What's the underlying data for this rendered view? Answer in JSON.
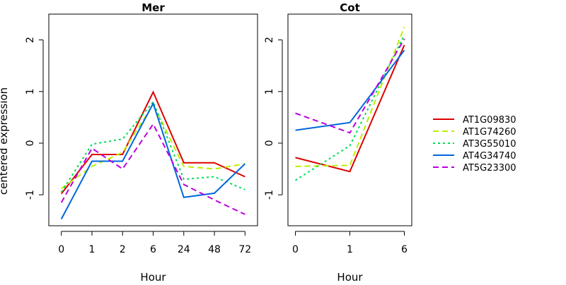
{
  "chart_data": {
    "type": "line",
    "ylabel": "centered expression",
    "ylim": [
      -1.6,
      2.5
    ],
    "yticks": [
      -1,
      0,
      1,
      2
    ],
    "legend_position": "right",
    "series_styles": [
      {
        "name": "AT1G09830",
        "color": "#dd0000",
        "dash": "solid"
      },
      {
        "name": "AT1G74260",
        "color": "#bbee00",
        "dash": "dashed"
      },
      {
        "name": "AT3G55010",
        "color": "#00dd55",
        "dash": "dotted"
      },
      {
        "name": "AT4G34740",
        "color": "#0066dd",
        "dash": "solid"
      },
      {
        "name": "AT5G23300",
        "color": "#bb00dd",
        "dash": "dashed"
      }
    ],
    "panels": [
      {
        "title": "Mer",
        "xlabel": "Hour",
        "categories": [
          "0",
          "1",
          "2",
          "6",
          "24",
          "48",
          "72"
        ],
        "series": [
          {
            "name": "AT1G09830",
            "values": [
              -0.98,
              -0.22,
              -0.22,
              0.99,
              -0.38,
              -0.38,
              -0.65
            ]
          },
          {
            "name": "AT1G74260",
            "values": [
              -0.88,
              -0.45,
              -0.18,
              0.75,
              -0.45,
              -0.5,
              -0.4
            ]
          },
          {
            "name": "AT3G55010",
            "values": [
              -0.95,
              -0.02,
              0.08,
              0.8,
              -0.7,
              -0.65,
              -0.9
            ]
          },
          {
            "name": "AT4G34740",
            "values": [
              -1.47,
              -0.35,
              -0.35,
              0.77,
              -1.05,
              -0.97,
              -0.4
            ]
          },
          {
            "name": "AT5G23300",
            "values": [
              -1.15,
              -0.1,
              -0.5,
              0.37,
              -0.8,
              -1.1,
              -1.38
            ]
          }
        ]
      },
      {
        "title": "Cot",
        "xlabel": "Hour",
        "categories": [
          "0",
          "1",
          "6"
        ],
        "series": [
          {
            "name": "AT1G09830",
            "values": [
              -0.28,
              -0.55,
              1.9
            ]
          },
          {
            "name": "AT1G74260",
            "values": [
              -0.45,
              -0.43,
              2.25
            ]
          },
          {
            "name": "AT3G55010",
            "values": [
              -0.72,
              -0.05,
              2.1
            ]
          },
          {
            "name": "AT4G34740",
            "values": [
              0.25,
              0.4,
              1.8
            ]
          },
          {
            "name": "AT5G23300",
            "values": [
              0.58,
              0.2,
              2.02
            ]
          }
        ]
      }
    ]
  }
}
